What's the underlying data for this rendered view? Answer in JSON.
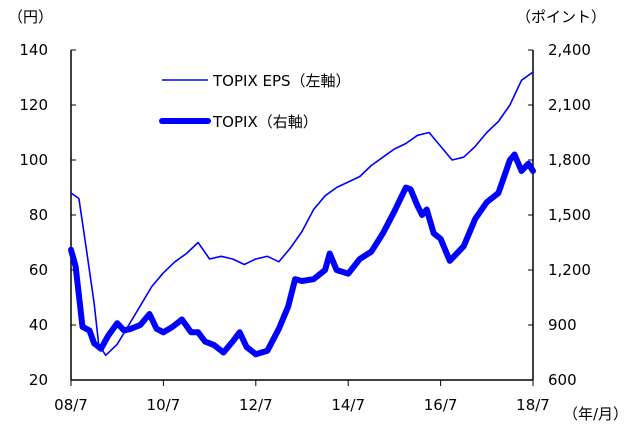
{
  "chart_data": {
    "type": "line",
    "left_axis": {
      "unit": "（円）",
      "ticks": [
        "20",
        "40",
        "60",
        "80",
        "100",
        "120",
        "140"
      ],
      "ylim": [
        20,
        140
      ]
    },
    "right_axis": {
      "unit": "（ポイント）",
      "ticks": [
        "600",
        "900",
        "1,200",
        "1,500",
        "1,800",
        "2,100",
        "2,400"
      ],
      "ylim": [
        600,
        2400
      ]
    },
    "x_axis": {
      "unit": "（年/月）",
      "ticks": [
        "08/7",
        "10/7",
        "12/7",
        "14/7",
        "16/7",
        "18/7"
      ],
      "xlim": [
        2008.5,
        2018.5
      ]
    },
    "grid": false,
    "legend_position": "top-left",
    "series": [
      {
        "name": "TOPIX  EPS（左軸）",
        "axis": "left",
        "color": "#0000ff",
        "style": "thin",
        "points": [
          [
            2008.5,
            88
          ],
          [
            2008.67,
            86
          ],
          [
            2008.83,
            68
          ],
          [
            2009.0,
            48
          ],
          [
            2009.1,
            33
          ],
          [
            2009.25,
            29
          ],
          [
            2009.5,
            33
          ],
          [
            2009.75,
            40
          ],
          [
            2010.0,
            47
          ],
          [
            2010.25,
            54
          ],
          [
            2010.5,
            59
          ],
          [
            2010.75,
            63
          ],
          [
            2011.0,
            66
          ],
          [
            2011.25,
            70
          ],
          [
            2011.5,
            64
          ],
          [
            2011.75,
            65
          ],
          [
            2012.0,
            64
          ],
          [
            2012.25,
            62
          ],
          [
            2012.5,
            64
          ],
          [
            2012.75,
            65
          ],
          [
            2013.0,
            63
          ],
          [
            2013.25,
            68
          ],
          [
            2013.5,
            74
          ],
          [
            2013.75,
            82
          ],
          [
            2014.0,
            87
          ],
          [
            2014.25,
            90
          ],
          [
            2014.5,
            92
          ],
          [
            2014.75,
            94
          ],
          [
            2015.0,
            98
          ],
          [
            2015.25,
            101
          ],
          [
            2015.5,
            104
          ],
          [
            2015.75,
            106
          ],
          [
            2016.0,
            109
          ],
          [
            2016.25,
            110
          ],
          [
            2016.5,
            105
          ],
          [
            2016.75,
            100
          ],
          [
            2017.0,
            101
          ],
          [
            2017.25,
            105
          ],
          [
            2017.5,
            110
          ],
          [
            2017.75,
            114
          ],
          [
            2018.0,
            120
          ],
          [
            2018.25,
            129
          ],
          [
            2018.5,
            132
          ]
        ]
      },
      {
        "name": "TOPIX（右軸）",
        "axis": "right",
        "color": "#0000ff",
        "style": "thick",
        "points": [
          [
            2008.5,
            1310
          ],
          [
            2008.6,
            1220
          ],
          [
            2008.75,
            890
          ],
          [
            2008.9,
            870
          ],
          [
            2009.0,
            800
          ],
          [
            2009.15,
            770
          ],
          [
            2009.3,
            840
          ],
          [
            2009.5,
            910
          ],
          [
            2009.65,
            870
          ],
          [
            2009.8,
            880
          ],
          [
            2010.0,
            900
          ],
          [
            2010.2,
            960
          ],
          [
            2010.35,
            880
          ],
          [
            2010.5,
            860
          ],
          [
            2010.7,
            890
          ],
          [
            2010.9,
            930
          ],
          [
            2011.1,
            860
          ],
          [
            2011.25,
            860
          ],
          [
            2011.4,
            810
          ],
          [
            2011.6,
            790
          ],
          [
            2011.8,
            750
          ],
          [
            2012.0,
            810
          ],
          [
            2012.15,
            860
          ],
          [
            2012.3,
            780
          ],
          [
            2012.5,
            740
          ],
          [
            2012.75,
            760
          ],
          [
            2013.0,
            880
          ],
          [
            2013.2,
            1000
          ],
          [
            2013.35,
            1150
          ],
          [
            2013.5,
            1140
          ],
          [
            2013.75,
            1150
          ],
          [
            2014.0,
            1200
          ],
          [
            2014.1,
            1290
          ],
          [
            2014.25,
            1200
          ],
          [
            2014.5,
            1180
          ],
          [
            2014.75,
            1260
          ],
          [
            2015.0,
            1300
          ],
          [
            2015.25,
            1400
          ],
          [
            2015.5,
            1520
          ],
          [
            2015.75,
            1650
          ],
          [
            2015.85,
            1640
          ],
          [
            2016.0,
            1550
          ],
          [
            2016.1,
            1500
          ],
          [
            2016.2,
            1530
          ],
          [
            2016.35,
            1400
          ],
          [
            2016.5,
            1370
          ],
          [
            2016.7,
            1250
          ],
          [
            2016.85,
            1290
          ],
          [
            2017.0,
            1330
          ],
          [
            2017.25,
            1480
          ],
          [
            2017.5,
            1570
          ],
          [
            2017.75,
            1620
          ],
          [
            2018.0,
            1800
          ],
          [
            2018.1,
            1830
          ],
          [
            2018.25,
            1740
          ],
          [
            2018.4,
            1780
          ],
          [
            2018.5,
            1740
          ]
        ]
      }
    ]
  }
}
